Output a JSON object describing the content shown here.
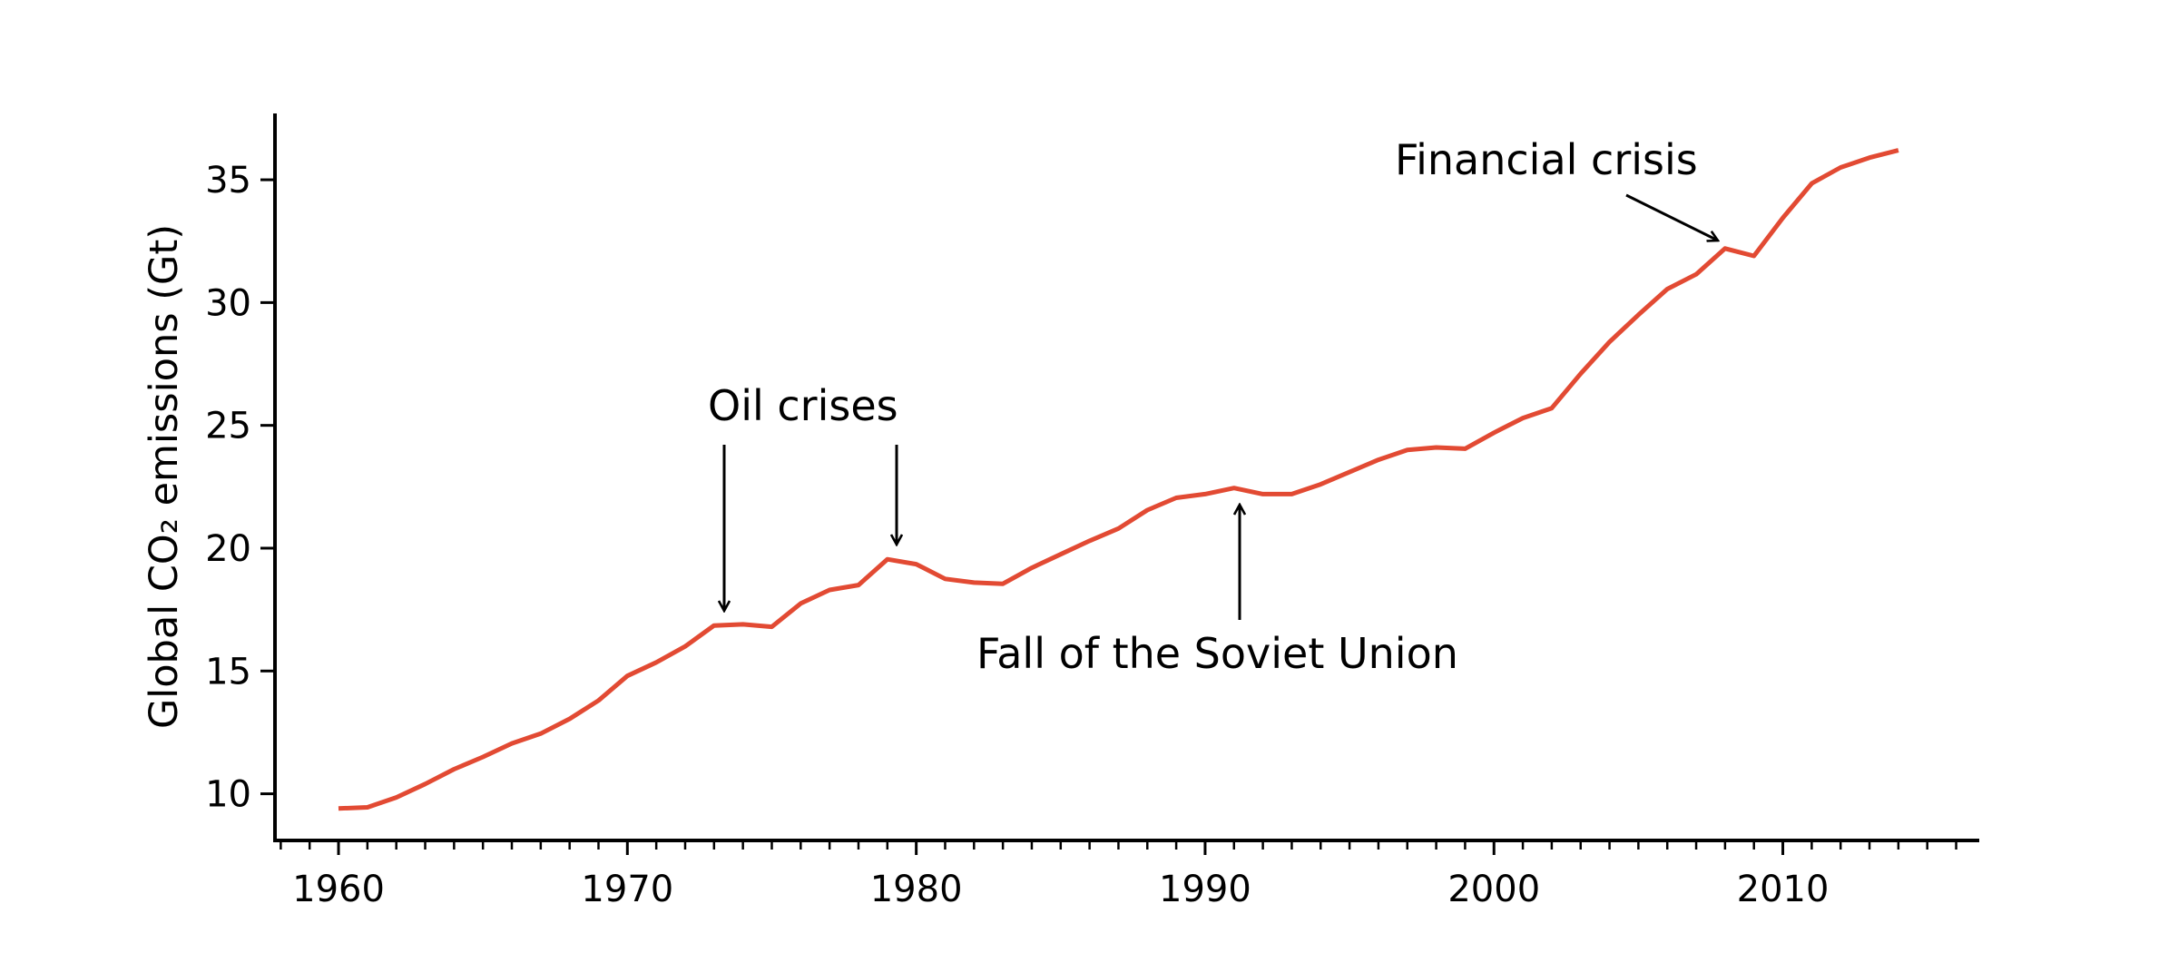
{
  "chart_data": {
    "type": "line",
    "ylabel": "Global CO₂ emissions (Gt)",
    "xlim": [
      1957.8,
      2016.8
    ],
    "ylim": [
      8.1,
      37.7
    ],
    "xticks_major": [
      1960,
      1970,
      1980,
      1990,
      2000,
      2010
    ],
    "xtick_labels": [
      "1960",
      "1970",
      "1980",
      "1990",
      "2000",
      "2010"
    ],
    "yticks": [
      10,
      15,
      20,
      25,
      30,
      35
    ],
    "ytick_labels": [
      "10",
      "15",
      "20",
      "25",
      "30",
      "35"
    ],
    "grid": false,
    "line_color": "#e24a33",
    "series": [
      {
        "x": [
          1960,
          1961,
          1962,
          1963,
          1964,
          1965,
          1966,
          1967,
          1968,
          1969,
          1970,
          1971,
          1972,
          1973,
          1974,
          1975,
          1976,
          1977,
          1978,
          1979,
          1980,
          1981,
          1982,
          1983,
          1984,
          1985,
          1986,
          1987,
          1988,
          1989,
          1990,
          1991,
          1992,
          1993,
          1994,
          1995,
          1996,
          1997,
          1998,
          1999,
          2000,
          2001,
          2002,
          2003,
          2004,
          2005,
          2006,
          2007,
          2008,
          2009,
          2010,
          2011,
          2012,
          2013,
          2014
        ],
        "values": [
          9.4,
          9.45,
          9.85,
          10.4,
          11.0,
          11.5,
          12.05,
          12.45,
          13.05,
          13.8,
          14.8,
          15.35,
          16.0,
          16.85,
          16.9,
          16.8,
          17.75,
          18.3,
          18.5,
          19.55,
          19.35,
          18.75,
          18.6,
          18.55,
          19.2,
          19.75,
          20.3,
          20.8,
          21.55,
          22.05,
          22.2,
          22.45,
          22.2,
          22.2,
          22.6,
          23.1,
          23.6,
          24.0,
          24.1,
          24.05,
          24.7,
          25.3,
          25.7,
          27.1,
          28.4,
          29.5,
          30.55,
          31.15,
          32.2,
          31.9,
          33.45,
          34.85,
          35.5,
          35.9,
          36.2
        ]
      }
    ],
    "annotations": [
      {
        "text": "Oil crises",
        "points_to_x": [
          1973,
          1979
        ]
      },
      {
        "text": "Fall of the Soviet Union",
        "points_to_x": [
          1991
        ]
      },
      {
        "text": "Financial crisis",
        "points_to_x": [
          2008
        ]
      }
    ]
  }
}
